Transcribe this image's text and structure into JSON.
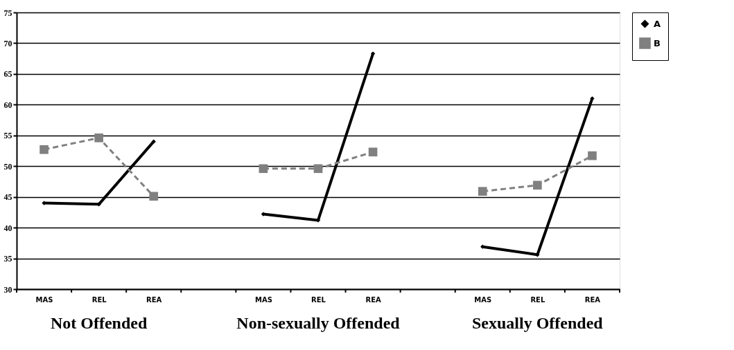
{
  "chart_data": {
    "type": "line",
    "categories": [
      "MAS",
      "REL",
      "REA",
      null,
      "MAS",
      "REL",
      "REA",
      null,
      "MAS",
      "REL",
      "REA"
    ],
    "series": [
      {
        "name": "A",
        "color": "#000000",
        "marker": "diamond",
        "line_style": "solid",
        "values": [
          44.0,
          43.8,
          54.0,
          null,
          42.2,
          41.2,
          68.3,
          null,
          36.9,
          35.6,
          61.0
        ]
      },
      {
        "name": "B",
        "color": "#808080",
        "marker": "square",
        "line_style": "dashed",
        "values": [
          52.7,
          54.6,
          45.1,
          null,
          49.6,
          49.6,
          52.3,
          null,
          45.9,
          46.9,
          51.7
        ]
      }
    ],
    "ylim": [
      30,
      75
    ],
    "yticks": [
      30,
      35,
      40,
      45,
      50,
      55,
      60,
      65,
      70,
      75
    ],
    "grid": "y",
    "legend": "right",
    "annotations": [
      "Not Offended",
      "Non-sexually Offended",
      "Sexually Offended"
    ]
  }
}
